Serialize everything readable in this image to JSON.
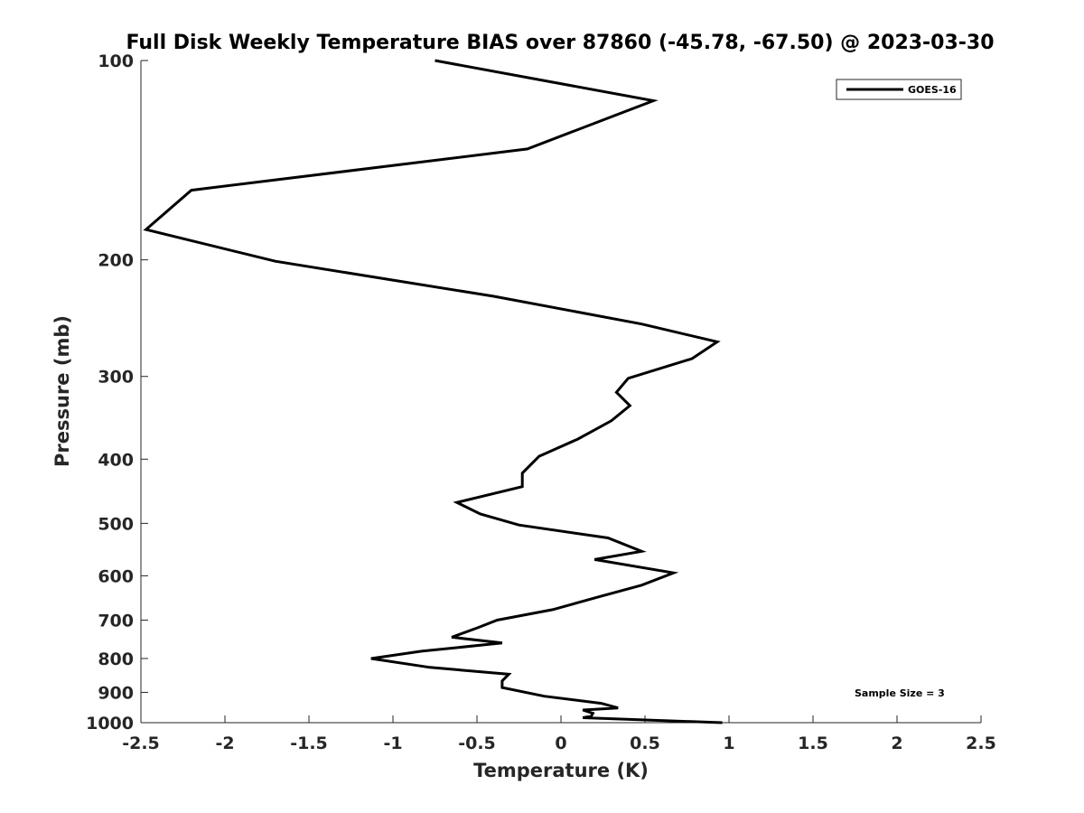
{
  "chart_data": {
    "type": "line",
    "title": "Full Disk Weekly Temperature BIAS over 87860 (-45.78, -67.50) @ 2023-03-30",
    "xlabel": "Temperature (K)",
    "ylabel": "Pressure (mb)",
    "xlim": [
      -2.5,
      2.5
    ],
    "ylim": [
      100,
      1000
    ],
    "yscale": "log",
    "y_reversed": true,
    "x_ticks": [
      "-2.5",
      "-2",
      "-1.5",
      "-1",
      "-0.5",
      "0",
      "0.5",
      "1",
      "1.5",
      "2",
      "2.5"
    ],
    "y_ticks": [
      "100",
      "200",
      "300",
      "400",
      "500",
      "600",
      "700",
      "800",
      "900",
      "1000"
    ],
    "grid": false,
    "legend_position": "top-right",
    "annotation": "Sample Size = 3",
    "series": [
      {
        "name": "GOES-16",
        "color": "#000000",
        "x": [
          -0.75,
          0.55,
          -0.2,
          -2.2,
          -2.47,
          -1.7,
          -0.4,
          0.48,
          0.93,
          0.78,
          0.4,
          0.33,
          0.41,
          0.3,
          0.1,
          -0.13,
          -0.23,
          -0.23,
          -0.62,
          -0.48,
          -0.25,
          0.28,
          0.48,
          0.2,
          0.67,
          0.48,
          0.23,
          -0.05,
          -0.38,
          -0.49,
          -0.65,
          -0.35,
          -0.83,
          -1.13,
          -0.78,
          -0.31,
          -0.35,
          -0.35,
          -0.1,
          0.24,
          0.34,
          0.13,
          0.19,
          0.18,
          0.13,
          0.96
        ],
        "y": [
          100,
          115,
          136,
          157,
          180,
          201,
          227,
          250,
          266,
          282,
          302,
          317,
          332,
          350,
          373,
          396,
          420,
          440,
          465,
          484,
          503,
          526,
          551,
          567,
          594,
          620,
          645,
          675,
          700,
          718,
          743,
          758,
          780,
          800,
          825,
          845,
          865,
          885,
          912,
          935,
          950,
          957,
          968,
          978,
          983,
          1000
        ]
      }
    ]
  }
}
